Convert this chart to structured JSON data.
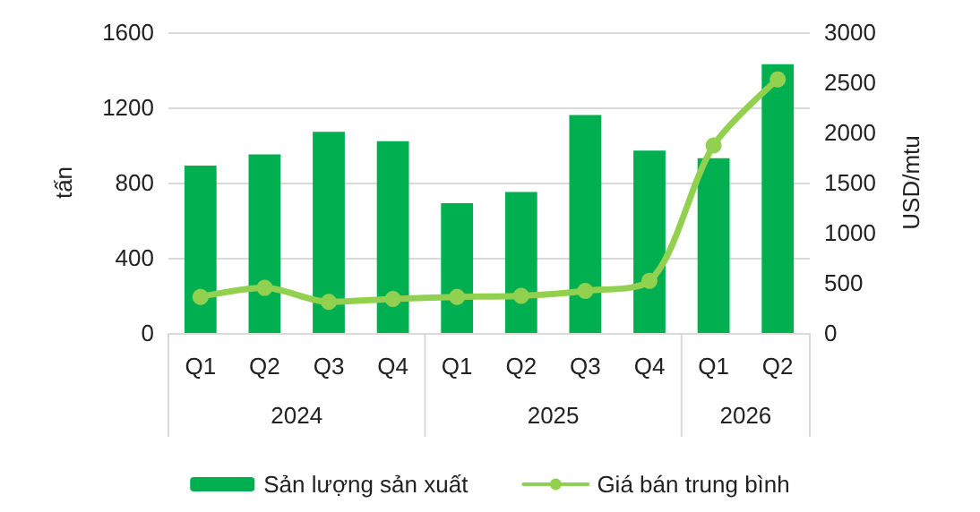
{
  "chart_data": {
    "type": "bar",
    "categories": [
      "Q1",
      "Q2",
      "Q3",
      "Q4",
      "Q1",
      "Q2",
      "Q3",
      "Q4",
      "Q1",
      "Q2"
    ],
    "annotations": [
      "2024",
      "2025",
      "2026"
    ],
    "ylabel": "tấn",
    "y2label": "USD/mtu",
    "ylim": [
      0,
      1600
    ],
    "yticks": [
      0,
      400,
      800,
      1200,
      1600
    ],
    "y2lim": [
      0,
      3000
    ],
    "y2ticks": [
      0,
      500,
      1000,
      1500,
      2000,
      2500,
      3000
    ],
    "grid": "y",
    "legend": "bottom",
    "series": [
      {
        "name": "Sản lượng sản xuất",
        "color": "#00b050",
        "values": [
          890,
          950,
          1070,
          1020,
          690,
          750,
          1160,
          970,
          930,
          1430
        ]
      },
      {
        "name": "Giá bán trung bình",
        "type": "line",
        "axis": "y2",
        "color": "#92d050",
        "marker": "circle",
        "line_style": "solid",
        "values": [
          360,
          450,
          310,
          340,
          360,
          370,
          420,
          520,
          1870,
          2530
        ]
      }
    ]
  }
}
